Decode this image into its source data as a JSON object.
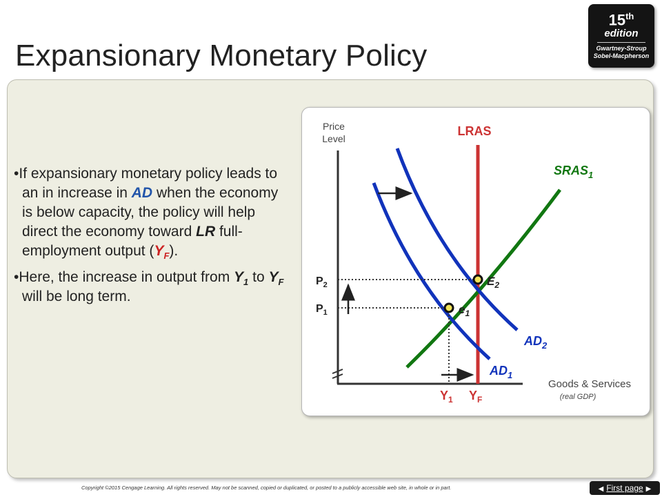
{
  "slide": {
    "title": "Expansionary Monetary Policy"
  },
  "badge": {
    "edition_number": "15",
    "edition_suffix": "th",
    "edition_label": "edition",
    "author_line1": "Gwartney-Stroup",
    "author_line2": "Sobel-Macpherson"
  },
  "bullets": {
    "b1": {
      "t1": "If expansionary monetary policy leads to an in increase in ",
      "ad": "AD",
      "t2": " when the economy is below capacity, the policy will help direct the economy toward ",
      "lr": "LR",
      "t3": " full-employment output (",
      "y": "Y",
      "f": "F",
      "t4": ")."
    },
    "b2": {
      "t1": "Here, the increase in output from ",
      "y": "Y",
      "one": "1",
      "t2": " to ",
      "y2": "Y",
      "f": "F",
      "t3": " will be long term."
    }
  },
  "graph": {
    "y_axis_line1": "Price",
    "y_axis_line2": "Level",
    "x_axis_line1": "Goods & Services",
    "x_axis_line2": "(real GDP)",
    "lras_label": "LRAS",
    "sras": {
      "base": "SRAS",
      "sub": "1"
    },
    "ad1": {
      "base": "AD",
      "sub": "1"
    },
    "ad2": {
      "base": "AD",
      "sub": "2"
    },
    "e1": {
      "base": "e",
      "sub": "1"
    },
    "e2": {
      "base": "E",
      "sub": "2"
    },
    "p1": {
      "base": "P",
      "sub": "1"
    },
    "p2": {
      "base": "P",
      "sub": "2"
    },
    "y1": {
      "base": "Y",
      "sub": "1"
    },
    "yf": {
      "base": "Y",
      "sub": "F"
    },
    "colors": {
      "lras": "#cc3333",
      "sras": "#117711",
      "ad": "#1133bb",
      "axis": "#333333"
    }
  },
  "footer": {
    "copyright": "Copyright ©2015 Cengage Learning. All rights reserved. May not be scanned, copied or duplicated, or posted to a publicly accessible web site, in whole or in part.",
    "first_page_label": "First page"
  }
}
